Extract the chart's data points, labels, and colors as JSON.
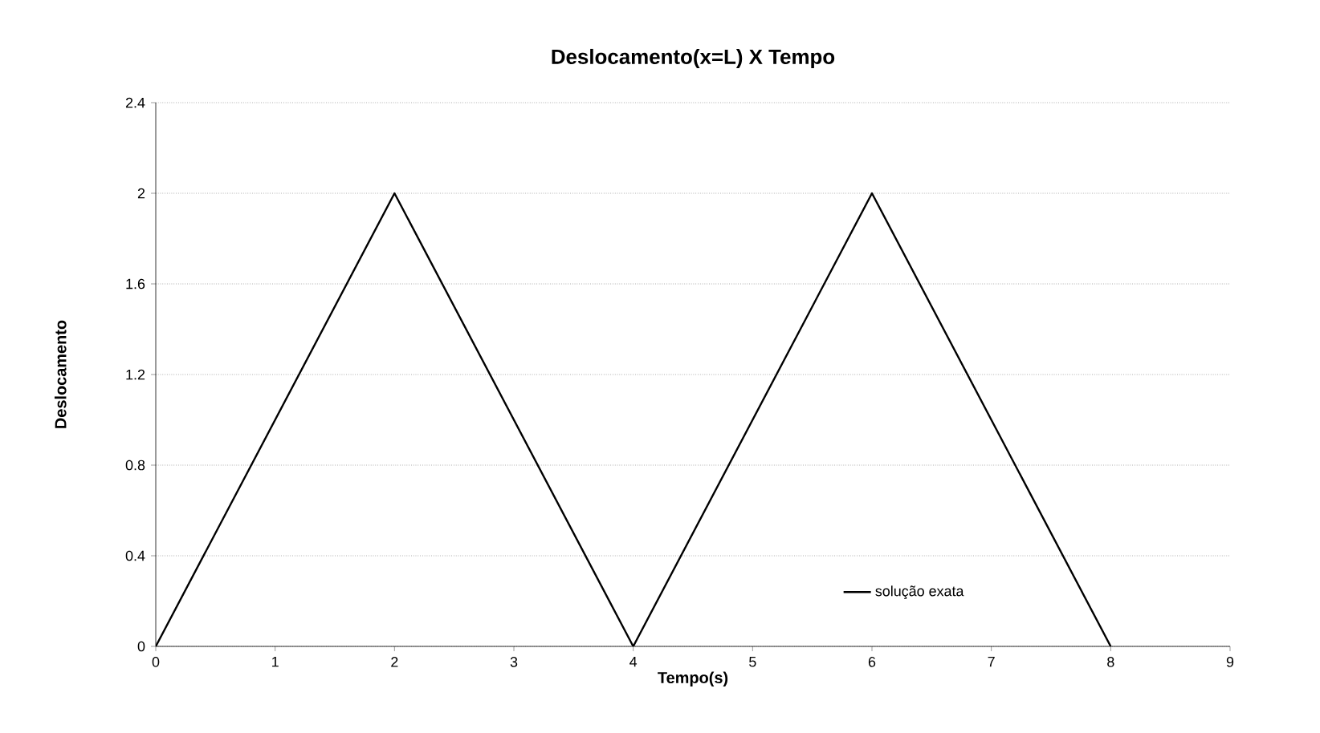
{
  "chart_data": {
    "type": "line",
    "title": "Deslocamento(x=L)  X  Tempo",
    "xlabel": "Tempo(s)",
    "ylabel": "Deslocamento",
    "x": [
      0,
      2,
      4,
      6,
      8
    ],
    "series": [
      {
        "name": "solução exata",
        "color": "#000000",
        "values": [
          0,
          2,
          0,
          2,
          0
        ]
      }
    ],
    "xlim": [
      0,
      9
    ],
    "xticks": [
      0,
      1,
      2,
      3,
      4,
      5,
      6,
      7,
      8,
      9
    ],
    "ylim": [
      0,
      2.4
    ],
    "yticks": [
      0,
      0.4,
      0.8,
      1.2,
      1.6,
      2,
      2.4
    ],
    "grid": "y",
    "legend": "bottom right",
    "marker": "none",
    "line_style": "solid"
  }
}
